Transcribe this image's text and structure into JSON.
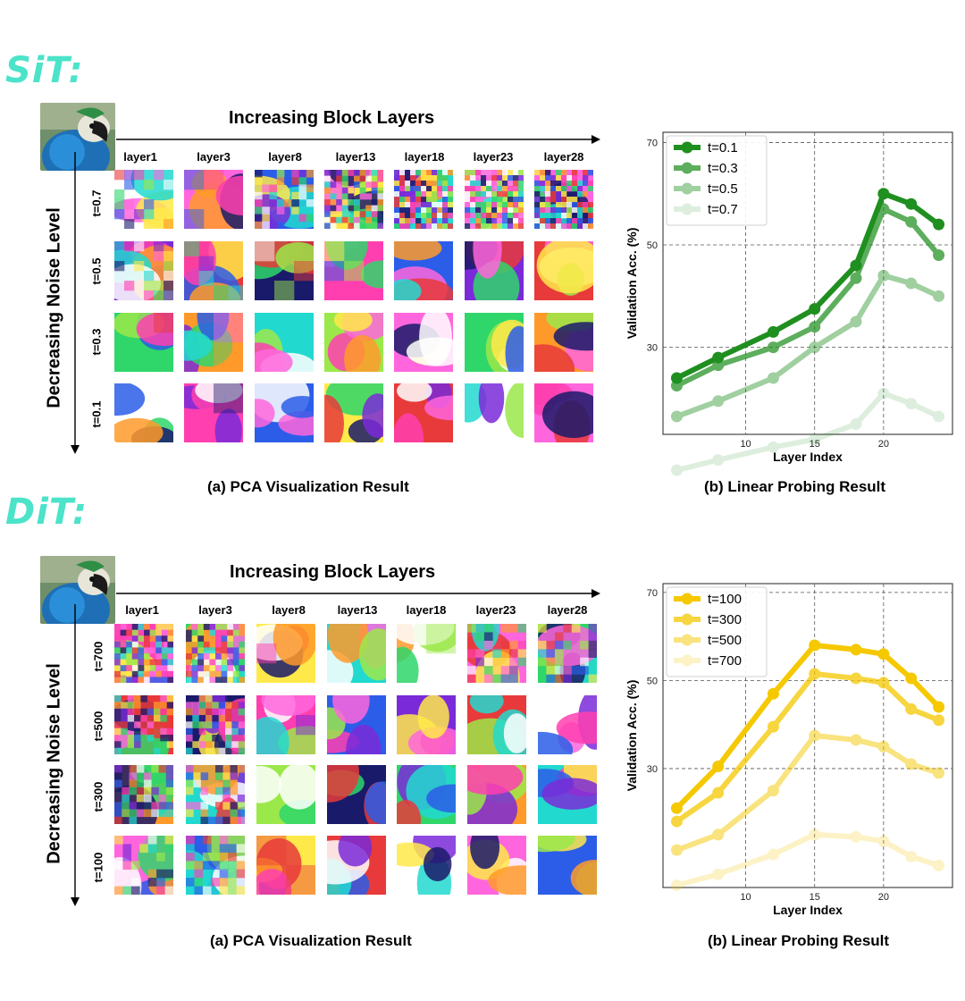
{
  "sections": [
    {
      "model": "SiT:",
      "header": "Increasing Block Layers",
      "vertical": "Decreasing Noise Level",
      "layers": [
        "layer1",
        "layer3",
        "layer8",
        "layer13",
        "layer18",
        "layer23",
        "layer28"
      ],
      "timesteps": [
        "t=0.7",
        "t=0.5",
        "t=0.3",
        "t=0.1"
      ],
      "caption_a": "(a) PCA Visualization Result",
      "caption_b": "(b) Linear Probing Result"
    },
    {
      "model": "DiT:",
      "header": "Increasing Block Layers",
      "vertical": "Decreasing Noise Level",
      "layers": [
        "layer1",
        "layer3",
        "layer8",
        "layer13",
        "layer18",
        "layer23",
        "layer28"
      ],
      "timesteps": [
        "t=700",
        "t=500",
        "t=300",
        "t=100"
      ],
      "caption_a": "(a) PCA Visualization Result",
      "caption_b": "(b) Linear Probing Result"
    }
  ],
  "chart_data": [
    {
      "type": "line",
      "xlabel": "Layer Index",
      "ylabel": "Validation Acc. (%)",
      "xlim": [
        4,
        25
      ],
      "ylim": [
        13,
        72
      ],
      "xticks": [
        10,
        15,
        20
      ],
      "yticks": [
        30,
        50,
        70
      ],
      "grid": true,
      "legend_position": "top-left",
      "x": [
        5,
        8,
        12,
        15,
        18,
        20,
        22,
        24
      ],
      "series": [
        {
          "name": "t=0.1",
          "color": "#1f8f1f",
          "opacity": 1.0,
          "values": [
            24,
            28,
            33,
            37.5,
            46,
            60,
            58,
            54
          ]
        },
        {
          "name": "t=0.3",
          "color": "#1f8f1f",
          "opacity": 0.72,
          "values": [
            22.5,
            26.5,
            30,
            34,
            43.5,
            57,
            54.5,
            48
          ]
        },
        {
          "name": "t=0.5",
          "color": "#1f8f1f",
          "opacity": 0.42,
          "values": [
            16.5,
            19.5,
            24,
            30,
            35,
            44,
            42.5,
            40
          ]
        },
        {
          "name": "t=0.7",
          "color": "#1f8f1f",
          "opacity": 0.14,
          "values": [
            6,
            8,
            10.5,
            12,
            15,
            21,
            19,
            16.5
          ]
        }
      ]
    },
    {
      "type": "line",
      "xlabel": "Layer Index",
      "ylabel": "Validation Acc. (%)",
      "xlim": [
        4,
        25
      ],
      "ylim": [
        3,
        72
      ],
      "xticks": [
        10,
        15,
        20
      ],
      "yticks": [
        30,
        50,
        70
      ],
      "grid": true,
      "legend_position": "top-left",
      "x": [
        5,
        8,
        12,
        15,
        18,
        20,
        22,
        24
      ],
      "series": [
        {
          "name": "t=100",
          "color": "#f5c800",
          "opacity": 1.0,
          "values": [
            21,
            30.5,
            47,
            58,
            57,
            56,
            50.5,
            44
          ]
        },
        {
          "name": "t=300",
          "color": "#f5c800",
          "opacity": 0.75,
          "values": [
            18,
            24.5,
            39.5,
            51.5,
            50.5,
            49.5,
            43.5,
            41
          ]
        },
        {
          "name": "t=500",
          "color": "#f5c800",
          "opacity": 0.5,
          "values": [
            11.5,
            15,
            25,
            37.5,
            36.5,
            35,
            31,
            29
          ]
        },
        {
          "name": "t=700",
          "color": "#f5c800",
          "opacity": 0.22,
          "values": [
            3.5,
            6,
            10.5,
            15,
            14.5,
            13.5,
            10,
            8
          ]
        }
      ]
    }
  ]
}
